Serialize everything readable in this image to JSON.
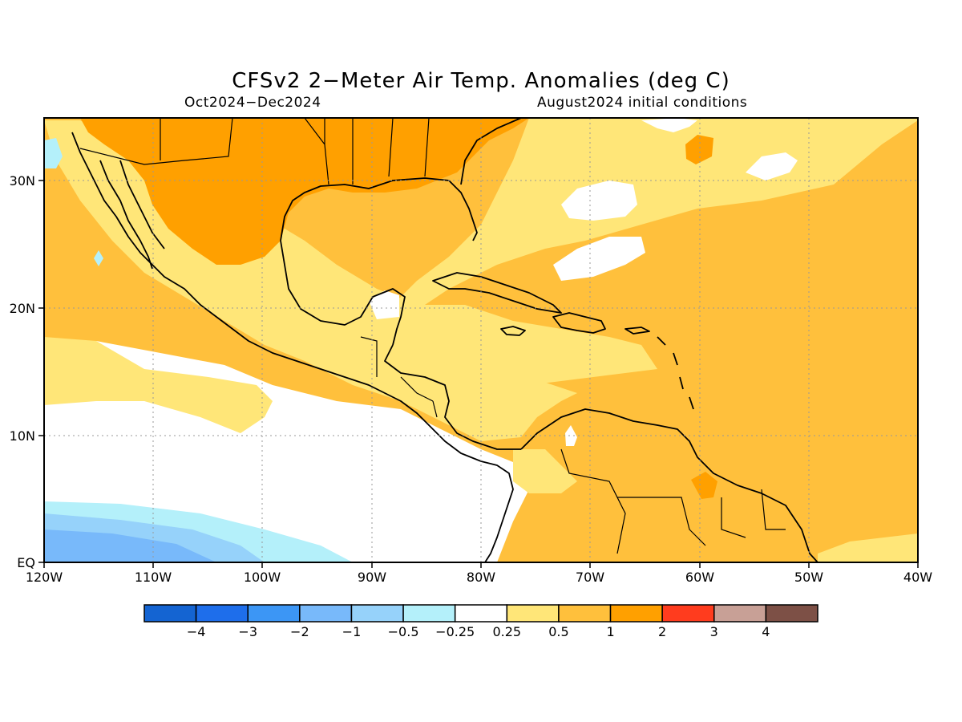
{
  "title": "CFSv2 2−Meter Air Temp. Anomalies (deg C)",
  "subtitle_left": "Oct2024−Dec2024",
  "subtitle_right": "August2024 initial conditions",
  "map": {
    "region": "Central America / Caribbean",
    "lon_ticks": [
      "120W",
      "110W",
      "100W",
      "90W",
      "80W",
      "70W",
      "60W",
      "50W",
      "40W"
    ],
    "lat_ticks": [
      "30N",
      "20N",
      "10N",
      "EQ"
    ],
    "grid": "dotted"
  },
  "colorbar": {
    "labels": [
      "−4",
      "−3",
      "−2",
      "−1",
      "−0.5",
      "−0.25",
      "0.25",
      "0.5",
      "1",
      "2",
      "3",
      "4"
    ],
    "colors": [
      "#1464d2",
      "#1e6eeb",
      "#3c96f5",
      "#78b9fa",
      "#96d2fa",
      "#b4f0fa",
      "#ffffff",
      "#ffe678",
      "#ffc03c",
      "#ffa000",
      "#ff3c1e",
      "#c8a096",
      "#7d5046"
    ]
  }
}
